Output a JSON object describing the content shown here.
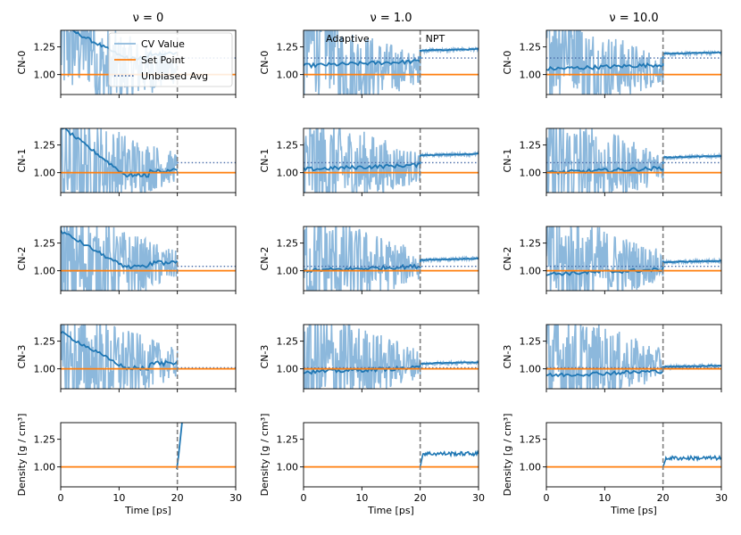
{
  "chart_data": {
    "type": "line",
    "columns": [
      {
        "title": "ν = 0",
        "nu": "0"
      },
      {
        "title": "ν = 1.0",
        "nu": "1.0"
      },
      {
        "title": "ν = 10.0",
        "nu": "10.0"
      }
    ],
    "rows": [
      {
        "ylabel": "CN-0",
        "unbiased_avg": [
          1.15,
          1.15,
          1.15
        ]
      },
      {
        "ylabel": "CN-1",
        "unbiased_avg": [
          1.09,
          1.09,
          1.09
        ]
      },
      {
        "ylabel": "CN-2",
        "unbiased_avg": [
          1.04,
          1.04,
          1.04
        ]
      },
      {
        "ylabel": "CN-3",
        "unbiased_avg": [
          1.01,
          1.01,
          1.01
        ]
      },
      {
        "ylabel": "Density [g / cm³]",
        "unbiased_avg": null
      }
    ],
    "xlabel": "Time [ps]",
    "xlim": [
      0,
      30
    ],
    "ylim": [
      0.82,
      1.4
    ],
    "xticks": [
      "0",
      "10",
      "20",
      "30"
    ],
    "yticks": [
      "1.00",
      "1.25"
    ],
    "yticks_cn": [
      "1.00",
      "1.25"
    ],
    "set_point": 1.0,
    "phase_switch_time": 20,
    "phase_labels": {
      "adaptive": "Adaptive",
      "npt": "NPT"
    },
    "legend": {
      "placement": "top-right of first panel",
      "entries": [
        {
          "label": "CV Value",
          "color": "#8cb8dc"
        },
        {
          "label": "Set Point",
          "color": "#ff7f0e"
        },
        {
          "label": "Unbiased Avg",
          "color": "#4a6da8"
        }
      ]
    },
    "approx_trends": {
      "cn_running_avg_npt_end": {
        "nu_1.0": [
          1.23,
          1.17,
          1.11,
          1.06
        ],
        "nu_10.0": [
          1.2,
          1.15,
          1.09,
          1.03
        ]
      },
      "density_npt_level": {
        "nu_0": "diverges above 1.4",
        "nu_1.0": 1.12,
        "nu_10.0": 1.08
      }
    }
  },
  "colors": {
    "cv": "#8cb8dc",
    "running": "#1f77b4",
    "setpoint": "#ff7f0e",
    "avg": "#4a6da8",
    "divider": "#808080"
  }
}
